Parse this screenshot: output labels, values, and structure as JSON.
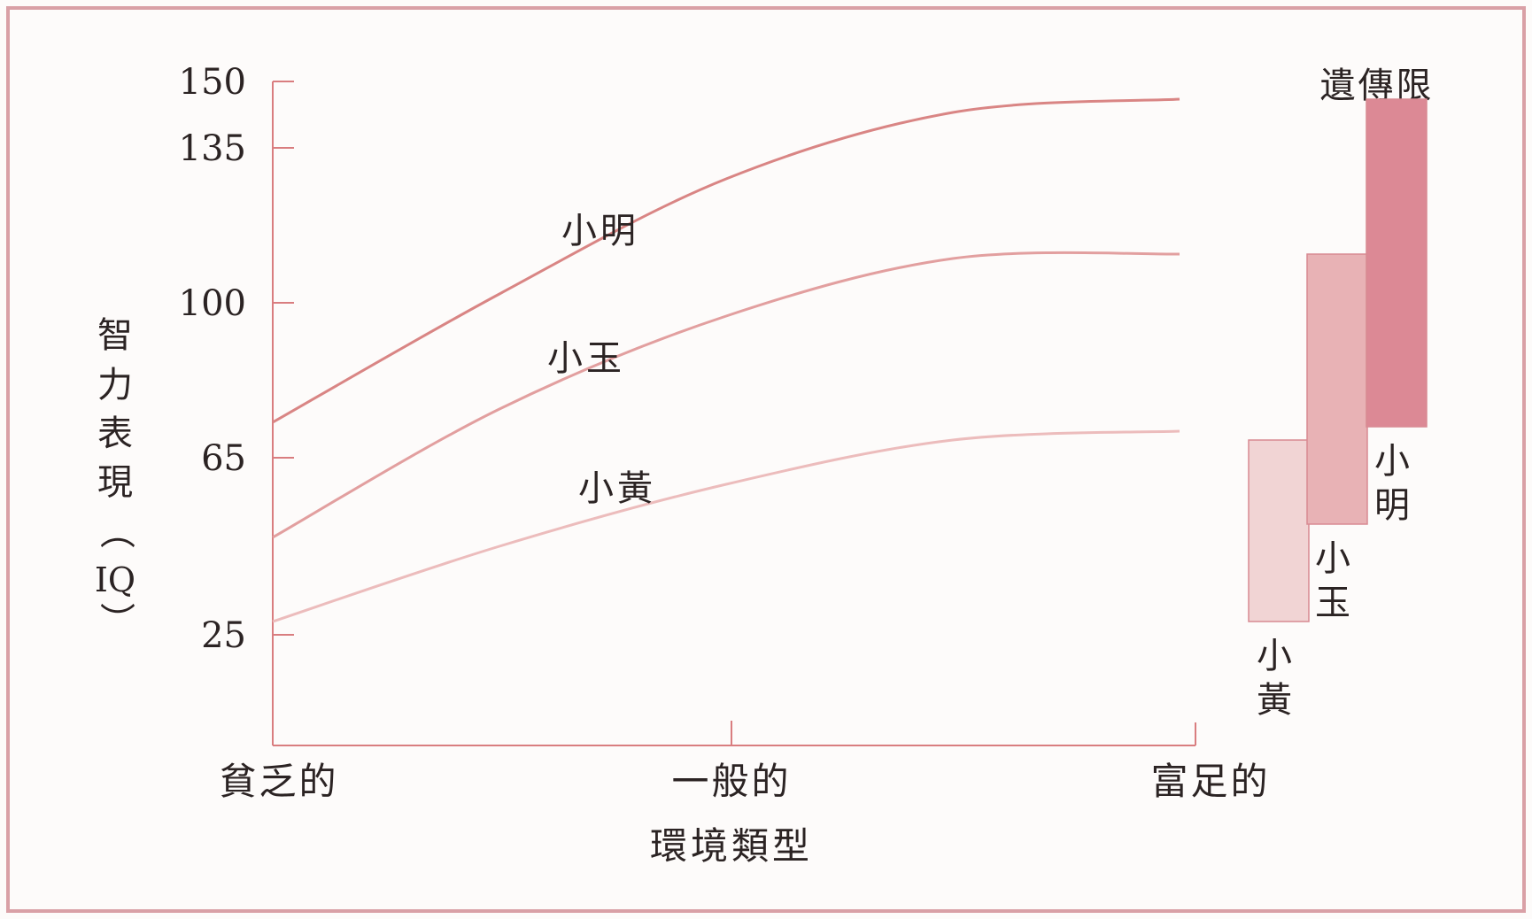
{
  "chart_data": {
    "type": "line",
    "xlabel": "環境類型",
    "ylabel": "智力表現（IQ）",
    "ylabel_chars": [
      "智",
      "力",
      "表",
      "現",
      "（",
      "IQ",
      "）"
    ],
    "y_ticks": [
      25,
      65,
      100,
      135,
      150
    ],
    "ylim": [
      0,
      150
    ],
    "x_categories": [
      "貧乏的",
      "一般的",
      "富足的"
    ],
    "x": [
      0,
      0.25,
      0.5,
      0.75,
      1
    ],
    "series": [
      {
        "name": "小明",
        "values": [
          73,
          102,
          128,
          143,
          146
        ],
        "color": "#d98584"
      },
      {
        "name": "小玉",
        "values": [
          47,
          76,
          97,
          110,
          111
        ],
        "color": "#e29f9f"
      },
      {
        "name": "小黃",
        "values": [
          28,
          45,
          59,
          69,
          71
        ],
        "color": "#ecbcbc"
      }
    ],
    "range_label": "遺傳限",
    "ranges": [
      {
        "name": "小黃",
        "min": 28,
        "max": 69,
        "color": "#f1d4d4"
      },
      {
        "name": "小玉",
        "min": 50,
        "max": 111,
        "color": "#e8b2b5"
      },
      {
        "name": "小明",
        "min": 72,
        "max": 146,
        "color": "#dc8995"
      }
    ],
    "grid": false,
    "legend": "none"
  }
}
